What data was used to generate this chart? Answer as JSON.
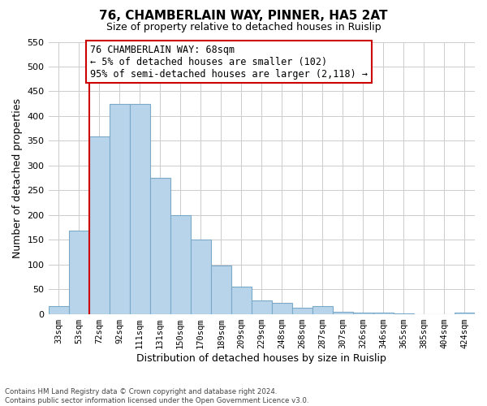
{
  "title": "76, CHAMBERLAIN WAY, PINNER, HA5 2AT",
  "subtitle": "Size of property relative to detached houses in Ruislip",
  "xlabel": "Distribution of detached houses by size in Ruislip",
  "ylabel": "Number of detached properties",
  "categories": [
    "33sqm",
    "53sqm",
    "72sqm",
    "92sqm",
    "111sqm",
    "131sqm",
    "150sqm",
    "170sqm",
    "189sqm",
    "209sqm",
    "229sqm",
    "248sqm",
    "268sqm",
    "287sqm",
    "307sqm",
    "326sqm",
    "346sqm",
    "365sqm",
    "385sqm",
    "404sqm",
    "424sqm"
  ],
  "values": [
    15,
    168,
    358,
    425,
    425,
    275,
    200,
    150,
    97,
    55,
    28,
    22,
    13,
    15,
    5,
    2,
    2,
    1,
    0,
    0,
    2
  ],
  "bar_color": "#b8d4ea",
  "bar_edge_color": "#7aaac8",
  "vline_x_idx": 2,
  "vline_color": "#cc0000",
  "annotation_line1": "76 CHAMBERLAIN WAY: 68sqm",
  "annotation_line2": "← 5% of detached houses are smaller (102)",
  "annotation_line3": "95% of semi-detached houses are larger (2,118) →",
  "annotation_box_color": "#ffffff",
  "annotation_box_edge_color": "#cc0000",
  "ylim": [
    0,
    550
  ],
  "yticks": [
    0,
    50,
    100,
    150,
    200,
    250,
    300,
    350,
    400,
    450,
    500,
    550
  ],
  "footer_line1": "Contains HM Land Registry data © Crown copyright and database right 2024.",
  "footer_line2": "Contains public sector information licensed under the Open Government Licence v3.0.",
  "bg_color": "#ffffff",
  "grid_color": "#cccccc"
}
